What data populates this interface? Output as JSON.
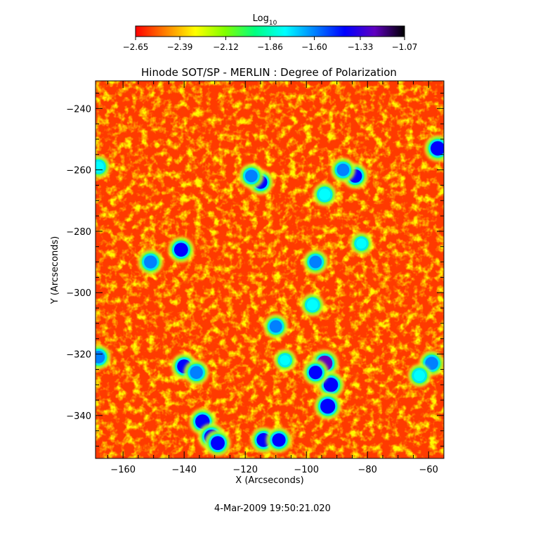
{
  "chart_data": {
    "type": "heatmap",
    "title": "Hinode SOT/SP - MERLIN : Degree of Polarization",
    "xlabel": "X (Arcseconds)",
    "ylabel": "Y (Arcseconds)",
    "xlim": [
      -169,
      -55
    ],
    "ylim": [
      -354,
      -231
    ],
    "x_ticks": [
      -160,
      -140,
      -120,
      -100,
      -80,
      -60
    ],
    "y_ticks": [
      -240,
      -260,
      -280,
      -300,
      -320,
      -340
    ],
    "colorbar": {
      "label_base": "Log",
      "label_sub": "10",
      "range": [
        -2.65,
        -1.07
      ],
      "ticks": [
        -2.65,
        -2.39,
        -2.12,
        -1.86,
        -1.6,
        -1.33,
        -1.07
      ],
      "tick_labels": [
        "−2.65",
        "−2.39",
        "−2.12",
        "−1.86",
        "−1.60",
        "−1.33",
        "−1.07"
      ]
    },
    "colormap": [
      "#ff0000",
      "#ff8000",
      "#ffff00",
      "#80ff00",
      "#00ff80",
      "#00ffff",
      "#0080ff",
      "#0000ff",
      "#6000c0",
      "#000000"
    ],
    "background_level": -2.55,
    "features": [
      {
        "x": -94,
        "y": -323,
        "level": -1.3
      },
      {
        "x": -92,
        "y": -330,
        "level": -1.4
      },
      {
        "x": -93,
        "y": -337,
        "level": -1.35
      },
      {
        "x": -97,
        "y": -326,
        "level": -1.5
      },
      {
        "x": -134,
        "y": -342,
        "level": -1.4
      },
      {
        "x": -131,
        "y": -347,
        "level": -1.35
      },
      {
        "x": -129,
        "y": -349,
        "level": -1.45
      },
      {
        "x": -114,
        "y": -348,
        "level": -1.45
      },
      {
        "x": -109,
        "y": -348,
        "level": -1.5
      },
      {
        "x": -140,
        "y": -324,
        "level": -1.45
      },
      {
        "x": -136,
        "y": -326,
        "level": -1.55
      },
      {
        "x": -141,
        "y": -286,
        "level": -1.45
      },
      {
        "x": -151,
        "y": -290,
        "level": -1.55
      },
      {
        "x": -115,
        "y": -264,
        "level": -1.5
      },
      {
        "x": -118,
        "y": -262,
        "level": -1.6
      },
      {
        "x": -84,
        "y": -262,
        "level": -1.5
      },
      {
        "x": -88,
        "y": -260,
        "level": -1.6
      },
      {
        "x": -57,
        "y": -253,
        "level": -1.4
      },
      {
        "x": -59,
        "y": -323,
        "level": -1.55
      },
      {
        "x": -63,
        "y": -327,
        "level": -1.75
      },
      {
        "x": -110,
        "y": -311,
        "level": -1.6
      },
      {
        "x": -97,
        "y": -290,
        "level": -1.6
      },
      {
        "x": -168,
        "y": -321,
        "level": -1.6
      },
      {
        "x": -94,
        "y": -268,
        "level": -1.7
      },
      {
        "x": -98,
        "y": -304,
        "level": -1.75
      },
      {
        "x": -107,
        "y": -322,
        "level": -1.85
      },
      {
        "x": -168,
        "y": -259,
        "level": -1.8
      },
      {
        "x": -82,
        "y": -284,
        "level": -1.85
      }
    ]
  },
  "footer": {
    "timestamp": "4-Mar-2009 19:50:21.020"
  }
}
